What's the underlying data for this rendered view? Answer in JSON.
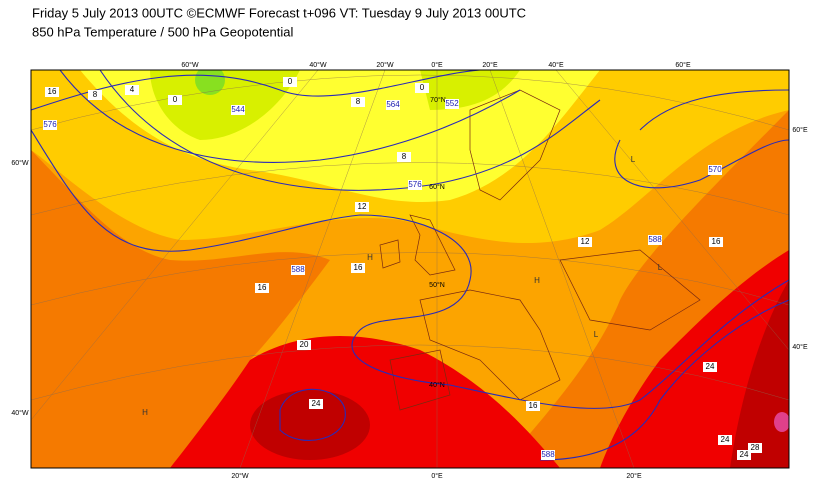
{
  "header": {
    "line1": "Friday 5 July 2013 00UTC ©ECMWF Forecast t+096 VT: Tuesday 9 July 2013 00UTC",
    "line2": "850 hPa Temperature / 500 hPa Geopotential"
  },
  "map": {
    "top_labels": [
      "60°W",
      "40°W",
      "20°W",
      "0°E",
      "20°E",
      "40°E",
      "60°E"
    ],
    "bottom_labels": [
      "20°W",
      "0°E",
      "20°E"
    ],
    "left_labels": [
      "60°W",
      "40°W"
    ],
    "right_labels": [
      "60°E",
      "40°E"
    ],
    "lat_labels": [
      "70°N",
      "60°N",
      "50°N",
      "40°N"
    ],
    "temperature_labels": [
      "16",
      "8",
      "4",
      "0",
      "0",
      "0",
      "8",
      "8",
      "12",
      "12",
      "16",
      "16",
      "16",
      "20",
      "24",
      "24",
      "16",
      "24",
      "24",
      "28"
    ],
    "geopotential_labels": [
      "576",
      "552",
      "564",
      "576",
      "588",
      "570",
      "588",
      "588",
      "544"
    ],
    "pressure_centres": [
      "H",
      "H",
      "H",
      "L",
      "L",
      "L"
    ]
  }
}
